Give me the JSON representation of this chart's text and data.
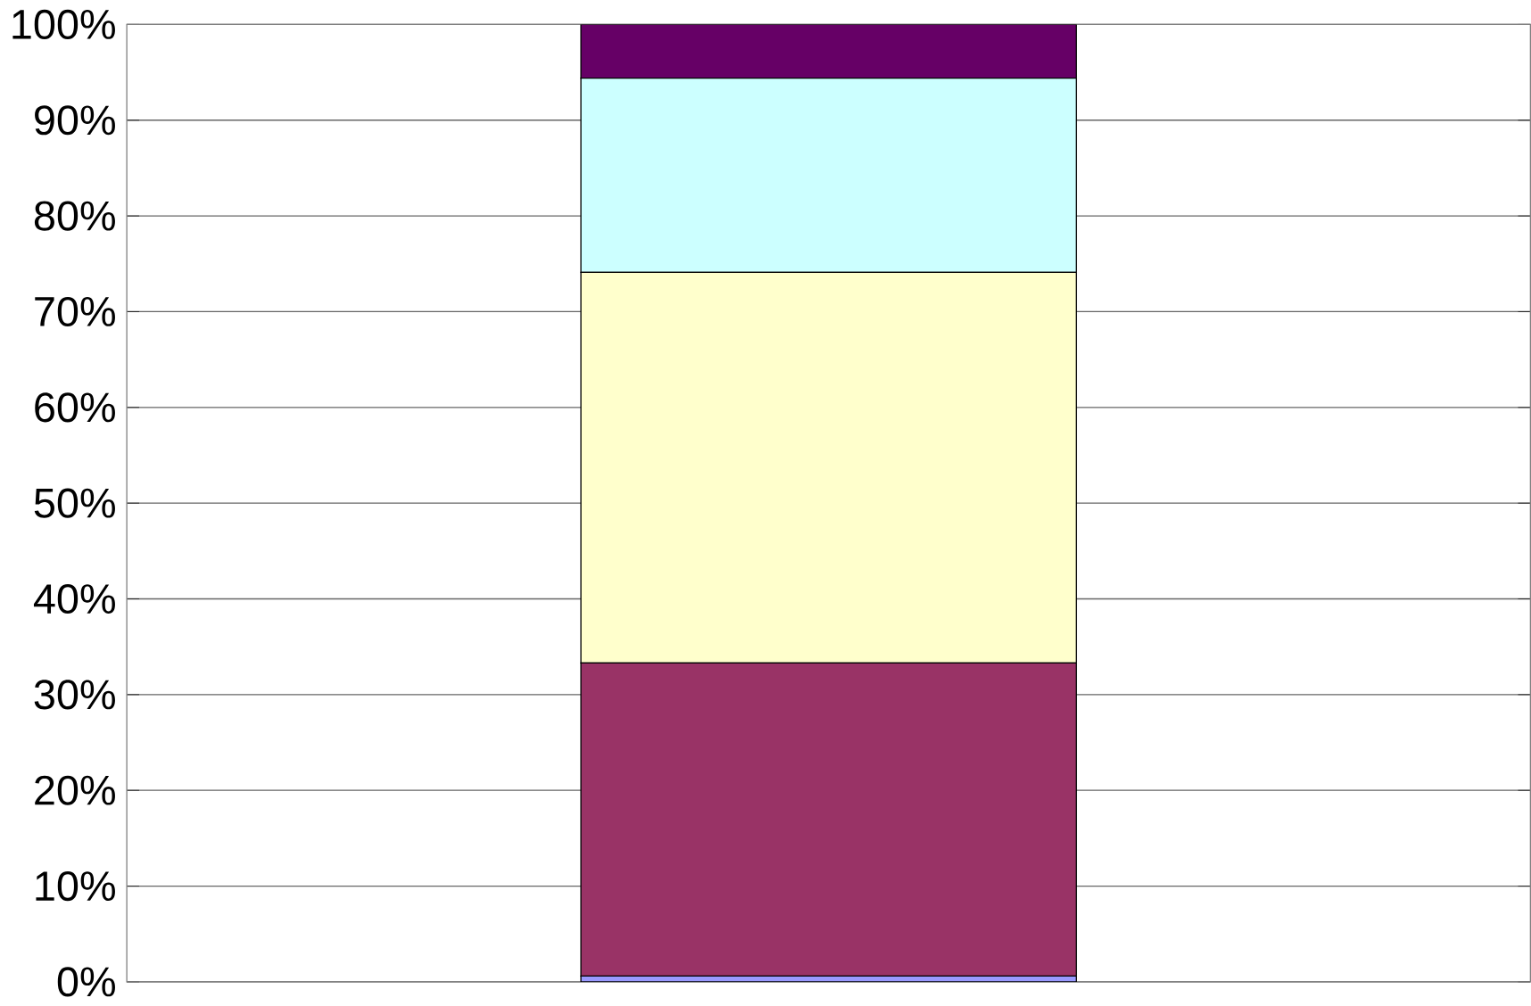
{
  "chart_data": {
    "type": "bar",
    "stacked": true,
    "categories": [
      null
    ],
    "series": [
      {
        "color": "#9999ff",
        "values": [
          0.6
        ]
      },
      {
        "color": "#993366",
        "values": [
          32.7
        ]
      },
      {
        "color": "#ffffcc",
        "values": [
          40.8
        ]
      },
      {
        "color": "#ccffff",
        "values": [
          20.3
        ]
      },
      {
        "color": "#660066",
        "values": [
          5.6
        ]
      }
    ],
    "ylim": [
      0,
      100
    ],
    "yticks": [
      {
        "value": 0,
        "label": "0%"
      },
      {
        "value": 10,
        "label": "10%"
      },
      {
        "value": 20,
        "label": "20%"
      },
      {
        "value": 30,
        "label": "30%"
      },
      {
        "value": 40,
        "label": "40%"
      },
      {
        "value": 50,
        "label": "50%"
      },
      {
        "value": 60,
        "label": "60%"
      },
      {
        "value": 70,
        "label": "70%"
      },
      {
        "value": 80,
        "label": "80%"
      },
      {
        "value": 90,
        "label": "90%"
      },
      {
        "value": 100,
        "label": "100%"
      }
    ],
    "grid": true
  }
}
